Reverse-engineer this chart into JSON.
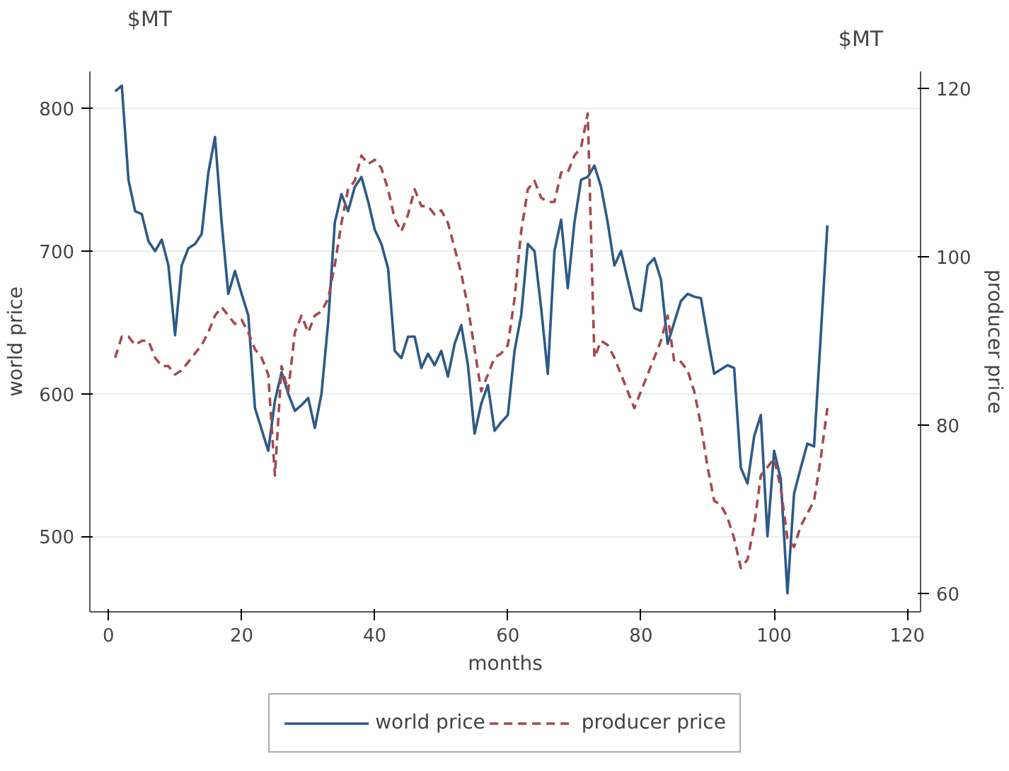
{
  "chart_data": {
    "type": "line",
    "xlabel": "months",
    "ylabel": "world price",
    "y2label": "producer price",
    "annotations": [
      "$MT",
      "$MT"
    ],
    "xlim": [
      -2.8,
      122
    ],
    "xticks": [
      0,
      20,
      40,
      60,
      80,
      100,
      120
    ],
    "ylim": [
      447,
      826
    ],
    "yticks": [
      500,
      600,
      700,
      800
    ],
    "y2lim": [
      57.8,
      122
    ],
    "y2ticks": [
      60,
      80,
      100,
      120
    ],
    "grid": "y",
    "legend": "bottom",
    "series": [
      {
        "name": "world price",
        "color": "#2d5a87",
        "line_style": "solid",
        "x": [
          1,
          2,
          3,
          4,
          5,
          6,
          7,
          8,
          9,
          10,
          11,
          12,
          13,
          14,
          15,
          16,
          17,
          18,
          19,
          20,
          21,
          22,
          23,
          24,
          25,
          26,
          27,
          28,
          29,
          30,
          31,
          32,
          33,
          34,
          35,
          36,
          37,
          38,
          39,
          40,
          41,
          42,
          43,
          44,
          45,
          46,
          47,
          48,
          49,
          50,
          51,
          52,
          53,
          54,
          55,
          56,
          57,
          58,
          59,
          60,
          61,
          62,
          63,
          64,
          65,
          66,
          67,
          68,
          69,
          70,
          71,
          72,
          73,
          74,
          75,
          76,
          77,
          78,
          79,
          80,
          81,
          82,
          83,
          84,
          85,
          86,
          87,
          88,
          89,
          90,
          91,
          92,
          93,
          94,
          95,
          96,
          97,
          98,
          99,
          100,
          101,
          102,
          103,
          104,
          105,
          106,
          107,
          108
        ],
        "values": [
          812,
          816,
          750,
          728,
          726,
          707,
          700,
          708,
          690,
          641,
          690,
          702,
          705,
          712,
          755,
          780,
          720,
          670,
          686,
          670,
          655,
          590,
          575,
          560,
          595,
          615,
          600,
          588,
          592,
          597,
          576,
          600,
          650,
          720,
          740,
          728,
          745,
          752,
          735,
          715,
          705,
          688,
          630,
          625,
          640,
          640,
          618,
          628,
          620,
          630,
          612,
          635,
          648,
          620,
          572,
          593,
          606,
          574,
          580,
          585,
          630,
          655,
          705,
          700,
          660,
          614,
          700,
          722,
          674,
          720,
          750,
          752,
          760,
          745,
          720,
          690,
          700,
          680,
          660,
          658,
          690,
          695,
          680,
          635,
          650,
          665,
          670,
          668,
          667,
          640,
          614,
          617,
          620,
          618,
          548,
          537,
          570,
          585,
          500,
          560,
          540,
          460,
          530,
          548,
          565,
          563,
          640,
          718
        ]
      },
      {
        "name": "producer price",
        "color": "#a34a50",
        "line_style": "dashed",
        "axis": "y2",
        "x": [
          1,
          2,
          3,
          4,
          5,
          6,
          7,
          8,
          9,
          10,
          11,
          12,
          13,
          14,
          15,
          16,
          17,
          18,
          19,
          20,
          21,
          22,
          23,
          24,
          25,
          26,
          27,
          28,
          29,
          30,
          31,
          32,
          33,
          34,
          35,
          36,
          37,
          38,
          39,
          40,
          41,
          42,
          43,
          44,
          45,
          46,
          47,
          48,
          49,
          50,
          51,
          52,
          53,
          54,
          55,
          56,
          57,
          58,
          59,
          60,
          61,
          62,
          63,
          64,
          65,
          66,
          67,
          68,
          69,
          70,
          71,
          72,
          73,
          74,
          75,
          76,
          77,
          78,
          79,
          80,
          81,
          82,
          83,
          84,
          85,
          86,
          87,
          88,
          89,
          90,
          91,
          92,
          93,
          94,
          95,
          96,
          97,
          98,
          99,
          100,
          101,
          102,
          103,
          104,
          105,
          106,
          107,
          108
        ],
        "values": [
          88,
          90.5,
          90.5,
          89.5,
          90,
          90,
          88,
          87,
          87,
          86,
          86.5,
          87.5,
          88.5,
          89.5,
          91,
          93,
          94,
          93,
          92,
          92.5,
          91,
          89,
          88,
          86,
          74,
          87,
          84,
          91,
          93,
          91,
          93,
          93.5,
          95,
          99,
          104,
          108,
          109,
          112,
          111,
          111.5,
          110.5,
          108,
          104.5,
          103,
          105,
          108,
          106,
          106,
          105,
          105.5,
          104,
          101,
          98,
          94,
          89,
          84,
          86,
          88,
          88.5,
          89.5,
          95,
          103,
          108,
          109,
          107,
          106.5,
          106.5,
          110,
          110,
          112,
          113,
          117,
          88,
          90,
          89.5,
          88,
          86,
          84,
          82,
          84,
          86,
          88,
          90,
          93,
          87.5,
          87.5,
          86.5,
          84,
          80,
          75,
          71,
          70.5,
          69,
          66.5,
          63,
          64,
          68,
          74,
          75,
          76,
          72.5,
          66.5,
          65.5,
          68,
          69.5,
          71,
          76,
          82
        ]
      }
    ]
  }
}
